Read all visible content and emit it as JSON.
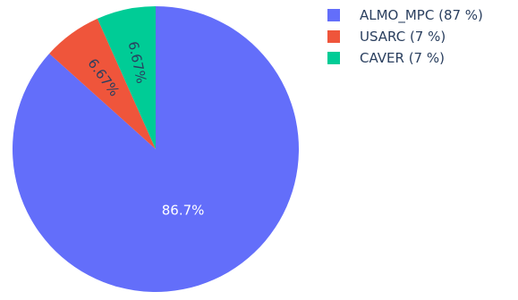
{
  "chart_data": {
    "type": "pie",
    "title": "",
    "slices": [
      {
        "name": "ALMO_MPC",
        "value": 86.7,
        "label": "86.7%",
        "legend": "ALMO_MPC (87 %)",
        "color": "#636efa",
        "label_color": "#ffffff"
      },
      {
        "name": "USARC",
        "value": 6.67,
        "label": "6.67%",
        "legend": "USARC (7 %)",
        "color": "#ef553b",
        "label_color": "#2a3f5f"
      },
      {
        "name": "CAVER",
        "value": 6.67,
        "label": "6.67%",
        "legend": "CAVER (7 %)",
        "color": "#00cc96",
        "label_color": "#2a3f5f"
      }
    ],
    "direction": "clockwise",
    "start": "top",
    "legend_position": "top-right"
  }
}
